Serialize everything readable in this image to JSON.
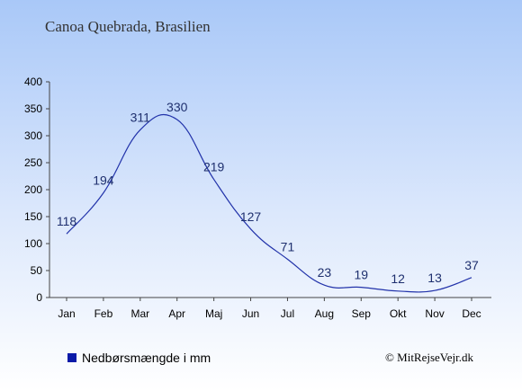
{
  "chart_data": {
    "type": "line",
    "title": "Canoa Quebrada, Brasilien",
    "categories": [
      "Jan",
      "Feb",
      "Mar",
      "Apr",
      "Maj",
      "Jun",
      "Jul",
      "Aug",
      "Sep",
      "Okt",
      "Nov",
      "Dec"
    ],
    "series": [
      {
        "name": "Nedbørsmængde i mm",
        "values": [
          118,
          194,
          311,
          330,
          219,
          127,
          71,
          23,
          19,
          12,
          13,
          37
        ],
        "color": "#2233aa"
      }
    ],
    "ylim": [
      0,
      400
    ],
    "yticks": [
      0,
      50,
      100,
      150,
      200,
      250,
      300,
      350,
      400
    ],
    "grid": false,
    "legend_position": "bottom-left"
  },
  "legend": {
    "label": "Nedbørsmængde i mm",
    "swatch_color": "#0a1aa8"
  },
  "copyright": "© MitRejseVejr.dk"
}
